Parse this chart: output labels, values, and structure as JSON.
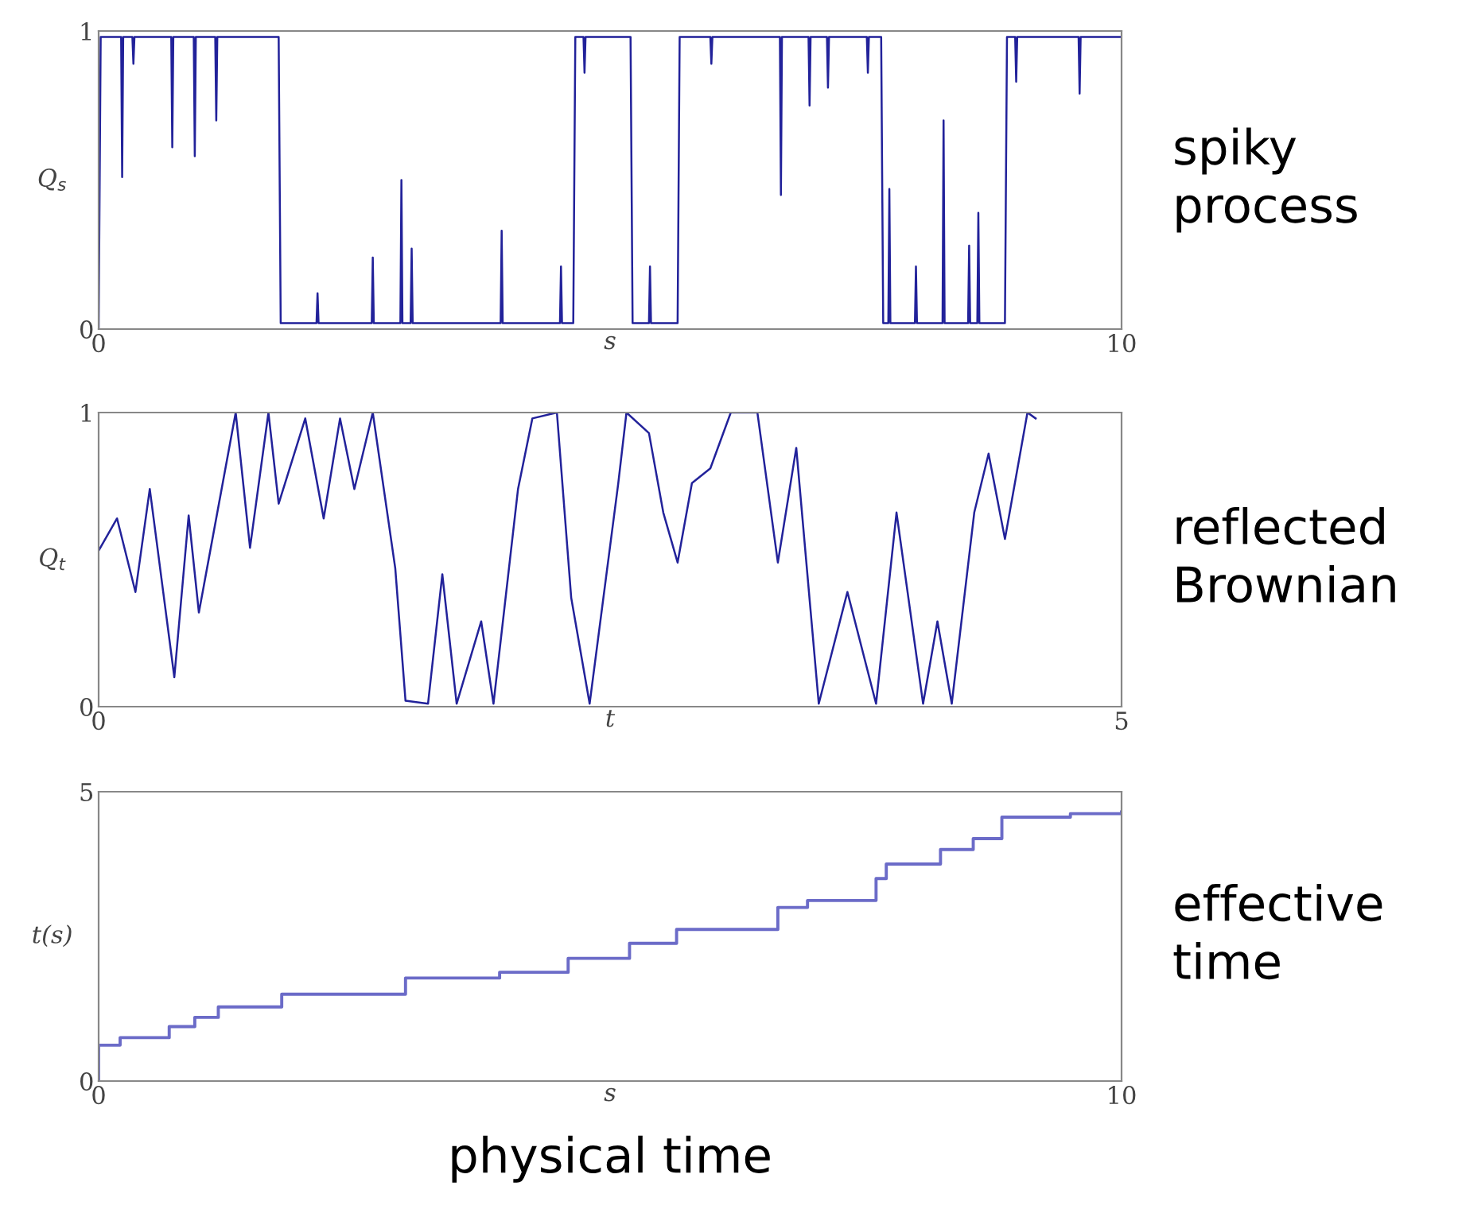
{
  "chart_data": [
    {
      "type": "line",
      "ylabel": "Q$_{s}$",
      "xlabel": "s",
      "annotations": [
        "spiky process"
      ],
      "xlim": [
        0,
        10
      ],
      "ylim": [
        0,
        1
      ],
      "xticks": [
        0,
        10
      ],
      "yticks": [
        0,
        1
      ],
      "grid": false,
      "series": [
        {
          "color": "#22229a",
          "x": [
            0,
            0.02,
            0.22,
            0.23,
            0.24,
            0.33,
            0.34,
            0.35,
            0.71,
            0.72,
            0.73,
            0.93,
            0.94,
            0.95,
            1.14,
            1.15,
            1.16,
            1.76,
            1.78,
            2.13,
            2.14,
            2.15,
            2.67,
            2.68,
            2.69,
            2.95,
            2.96,
            2.97,
            3.05,
            3.06,
            3.07,
            3.93,
            3.94,
            3.95,
            4.51,
            4.52,
            4.53,
            4.64,
            4.66,
            4.74,
            4.75,
            4.76,
            5.2,
            5.22,
            5.38,
            5.39,
            5.4,
            5.66,
            5.68,
            5.98,
            5.99,
            6.0,
            6.66,
            6.67,
            6.68,
            6.94,
            6.95,
            6.96,
            7.12,
            7.13,
            7.14,
            7.51,
            7.52,
            7.53,
            7.65,
            7.67,
            7.72,
            7.73,
            7.74,
            7.98,
            7.99,
            8.0,
            8.25,
            8.26,
            8.27,
            8.5,
            8.51,
            8.52,
            8.59,
            8.6,
            8.61,
            8.86,
            8.88,
            8.96,
            8.97,
            8.98,
            9.58,
            9.59,
            9.6,
            10
          ],
          "values": [
            0,
            0.98,
            0.98,
            0.51,
            0.98,
            0.98,
            0.89,
            0.98,
            0.98,
            0.61,
            0.98,
            0.98,
            0.58,
            0.98,
            0.98,
            0.7,
            0.98,
            0.98,
            0.02,
            0.02,
            0.12,
            0.02,
            0.02,
            0.24,
            0.02,
            0.02,
            0.5,
            0.02,
            0.02,
            0.27,
            0.02,
            0.02,
            0.33,
            0.02,
            0.02,
            0.21,
            0.02,
            0.02,
            0.98,
            0.98,
            0.86,
            0.98,
            0.98,
            0.02,
            0.02,
            0.21,
            0.02,
            0.02,
            0.98,
            0.98,
            0.89,
            0.98,
            0.98,
            0.45,
            0.98,
            0.98,
            0.75,
            0.98,
            0.98,
            0.81,
            0.98,
            0.98,
            0.86,
            0.98,
            0.98,
            0.02,
            0.02,
            0.47,
            0.02,
            0.02,
            0.21,
            0.02,
            0.02,
            0.7,
            0.02,
            0.02,
            0.28,
            0.02,
            0.02,
            0.39,
            0.02,
            0.02,
            0.98,
            0.98,
            0.83,
            0.98,
            0.98,
            0.79,
            0.98,
            0.98
          ]
        }
      ]
    },
    {
      "type": "line",
      "ylabel": "Q$_{t}$",
      "xlabel": "t",
      "annotations": [
        "reflected Brownian"
      ],
      "xlim": [
        0,
        5
      ],
      "ylim": [
        0,
        1
      ],
      "xticks": [
        0,
        5
      ],
      "yticks": [
        0,
        1
      ],
      "grid": false,
      "series": [
        {
          "color": "#22229a",
          "x": [
            0,
            0.09,
            0.18,
            0.25,
            0.37,
            0.44,
            0.49,
            0.67,
            0.74,
            0.83,
            0.88,
            1.01,
            1.1,
            1.18,
            1.25,
            1.34,
            1.45,
            1.5,
            1.61,
            1.68,
            1.75,
            1.87,
            1.93,
            2.05,
            2.12,
            2.24,
            2.31,
            2.4,
            2.54,
            2.58,
            2.69,
            2.76,
            2.83,
            2.9,
            2.99,
            3.09,
            3.22,
            3.32,
            3.41,
            3.52,
            3.66,
            3.8,
            3.9,
            4.03,
            4.1,
            4.17,
            4.28,
            4.35,
            4.43,
            4.54,
            4.58
          ],
          "values": [
            0.53,
            0.64,
            0.39,
            0.74,
            0.1,
            0.65,
            0.32,
            1,
            0.54,
            1,
            0.69,
            0.98,
            0.64,
            0.98,
            0.74,
            1,
            0.47,
            0.02,
            0.01,
            0.45,
            0.01,
            0.29,
            0.01,
            0.74,
            0.98,
            1,
            0.37,
            0.01,
            0.76,
            1,
            0.93,
            0.66,
            0.49,
            0.76,
            0.81,
            1,
            1,
            0.49,
            0.88,
            0.01,
            0.39,
            0.01,
            0.66,
            0.01,
            0.29,
            0.01,
            0.66,
            0.86,
            0.57,
            1,
            0.98
          ]
        }
      ]
    },
    {
      "type": "step",
      "ylabel": "t(s)",
      "xlabel": "s",
      "annotations": [
        "effective time",
        "physical time"
      ],
      "xlim": [
        0,
        10
      ],
      "ylim": [
        0,
        5
      ],
      "xticks": [
        0,
        10
      ],
      "yticks": [
        0,
        5
      ],
      "grid": false,
      "series": [
        {
          "color": "#6b6bc8",
          "x": [
            0,
            0,
            0.21,
            0.69,
            0.94,
            1.17,
            1.79,
            3.0,
            3.92,
            4.59,
            5.19,
            5.65,
            6.64,
            6.93,
            7.6,
            7.7,
            8.23,
            8.55,
            8.83,
            9.5,
            10
          ],
          "values": [
            0,
            0.62,
            0.75,
            0.94,
            1.1,
            1.28,
            1.5,
            1.78,
            1.88,
            2.12,
            2.38,
            2.62,
            3.0,
            3.12,
            3.5,
            3.75,
            4.0,
            4.19,
            4.56,
            4.62,
            4.65
          ]
        }
      ]
    }
  ]
}
